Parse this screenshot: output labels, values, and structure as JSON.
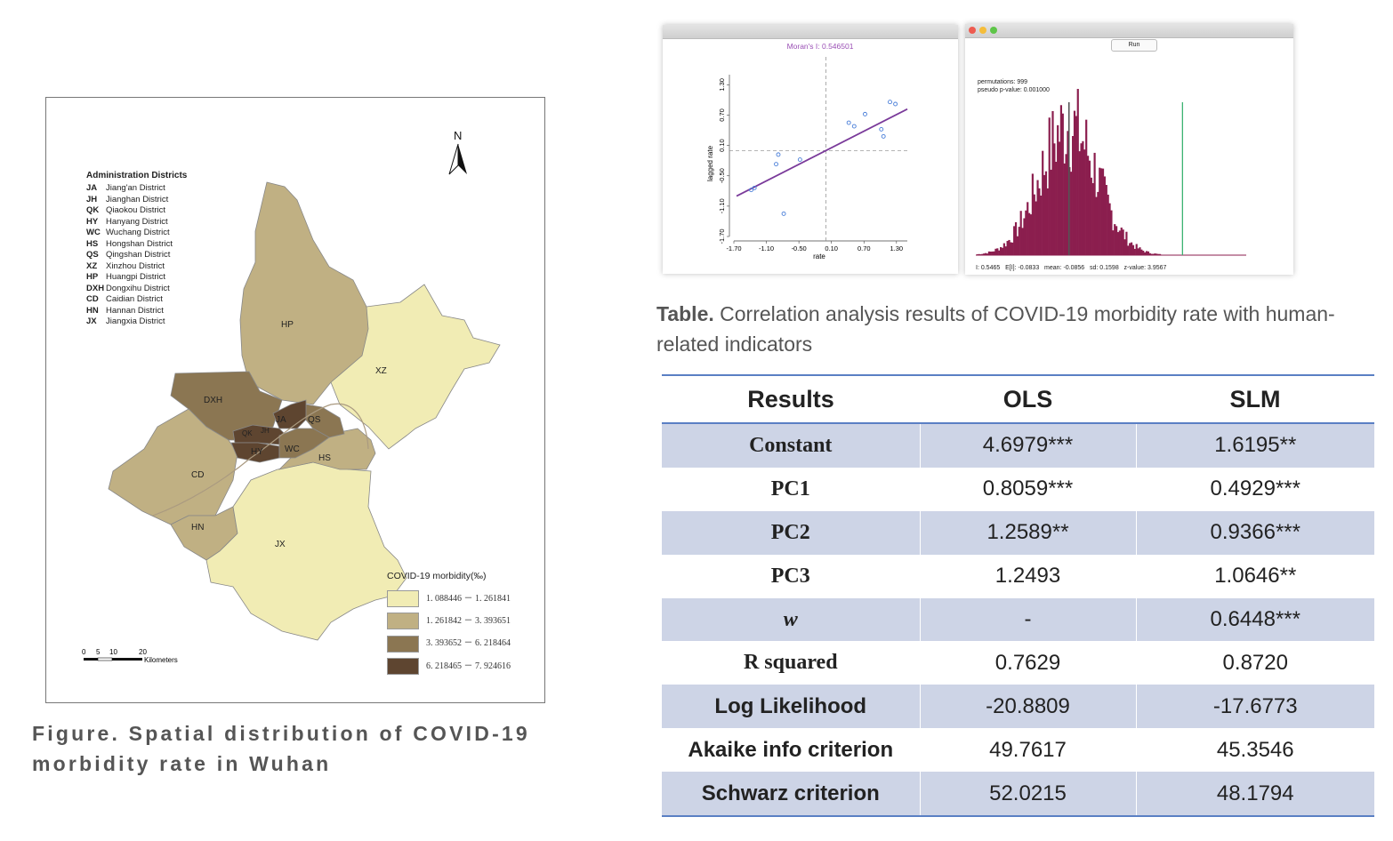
{
  "map": {
    "north_label": "N",
    "districts_title": "Administration Districts",
    "districts": [
      {
        "code": "JA",
        "name": "Jiang'an District"
      },
      {
        "code": "JH",
        "name": "Jianghan District"
      },
      {
        "code": "QK",
        "name": "Qiaokou District"
      },
      {
        "code": "HY",
        "name": "Hanyang District"
      },
      {
        "code": "WC",
        "name": "Wuchang District"
      },
      {
        "code": "HS",
        "name": "Hongshan District"
      },
      {
        "code": "QS",
        "name": "Qingshan District"
      },
      {
        "code": "XZ",
        "name": "Xinzhou District"
      },
      {
        "code": "HP",
        "name": "Huangpi District"
      },
      {
        "code": "DXH",
        "name": "Dongxihu District"
      },
      {
        "code": "CD",
        "name": "Caidian District"
      },
      {
        "code": "HN",
        "name": "Hannan District"
      },
      {
        "code": "JX",
        "name": "Jiangxia District"
      }
    ],
    "region_labels": {
      "HP": "HP",
      "XZ": "XZ",
      "DXH": "DXH",
      "JA": "JA",
      "QS": "QS",
      "QK": "QK",
      "JH": "JH",
      "HY": "HY",
      "WC": "WC",
      "HS": "HS",
      "CD": "CD",
      "HN": "HN",
      "JX": "JX"
    },
    "morbidity_title": "COVID-19 morbidity(‰)",
    "classes": [
      {
        "range": "1. 088446 － 1. 261841",
        "color": "#f1ecb4"
      },
      {
        "range": "1. 261842 － 3. 393651",
        "color": "#c0b083"
      },
      {
        "range": "3. 393652 － 6. 218464",
        "color": "#8b7652"
      },
      {
        "range": "6. 218465 － 7. 924616",
        "color": "#5e4530"
      }
    ],
    "scale": {
      "ticks": [
        "0",
        "5",
        "10",
        "20"
      ],
      "unit": "Kilometers"
    }
  },
  "figure_caption": "Figure. Spatial distribution of COVID-19 morbidity rate in Wuhan",
  "moran_window": {
    "title": "Moran's I: 0.546501",
    "xlabel": "rate",
    "ylabel": "lagged rate"
  },
  "perm_window": {
    "run_label": "Run",
    "permutations": "permutations: 999",
    "pvalue": "pseudo p-value: 0.001000",
    "stats": "I: 0.5465   E[I]: -0.0833   mean: -0.0856   sd: 0.1598   z-value: 3.9567"
  },
  "table_caption": {
    "lead": "Table.",
    "text": " Correlation analysis results of COVID-19 morbidity rate with human-related indicators"
  },
  "table": {
    "headers": [
      "Results",
      "OLS",
      "SLM"
    ],
    "rows": [
      {
        "label": "Constant",
        "ols": "4.6979***",
        "slm": "1.6195**"
      },
      {
        "label": "PC1",
        "ols": "0.8059***",
        "slm": "0.4929***"
      },
      {
        "label": "PC2",
        "ols": "1.2589**",
        "slm": "0.9366***"
      },
      {
        "label": "PC3",
        "ols": "1.2493",
        "slm": "1.0646**"
      },
      {
        "label": "w",
        "ols": "-",
        "slm": "0.6448***"
      },
      {
        "label": "R squared",
        "ols": "0.7629",
        "slm": "0.8720"
      },
      {
        "label": "Log Likelihood",
        "ols": "-20.8809",
        "slm": "-17.6773"
      },
      {
        "label": "Akaike info criterion",
        "ols": "49.7617",
        "slm": "45.3546"
      },
      {
        "label": "Schwarz criterion",
        "ols": "52.0215",
        "slm": "48.1794"
      }
    ]
  },
  "chart_data": [
    {
      "type": "scatter",
      "title": "Moran's I: 0.546501",
      "xlabel": "rate",
      "ylabel": "lagged rate",
      "xlim": [
        -1.7,
        1.5
      ],
      "ylim": [
        -1.7,
        1.5
      ],
      "x_ticks": [
        "-1.70",
        "-1.10",
        "-0.50",
        "0.10",
        "0.70",
        "1.30"
      ],
      "y_ticks": [
        "-1.70",
        "-1.10",
        "-0.50",
        "0.10",
        "0.70",
        "1.30"
      ],
      "points": [
        {
          "x": -1.38,
          "y": -0.78
        },
        {
          "x": -1.32,
          "y": -0.74
        },
        {
          "x": -0.92,
          "y": -0.27
        },
        {
          "x": -0.88,
          "y": -0.08
        },
        {
          "x": -0.78,
          "y": -1.25
        },
        {
          "x": -0.48,
          "y": -0.18
        },
        {
          "x": 0.42,
          "y": 0.55
        },
        {
          "x": 0.52,
          "y": 0.48
        },
        {
          "x": 0.72,
          "y": 0.72
        },
        {
          "x": 1.02,
          "y": 0.42
        },
        {
          "x": 1.06,
          "y": 0.28
        },
        {
          "x": 1.18,
          "y": 0.96
        },
        {
          "x": 1.28,
          "y": 0.92
        }
      ],
      "fit_slope": 0.5465
    },
    {
      "type": "bar",
      "title": "",
      "reference_lines": {
        "expected": -0.0833,
        "observed": 0.5465
      },
      "xlim": [
        -0.6,
        0.9
      ],
      "hist_mean": -0.0856,
      "hist_sd": 0.1598,
      "permutations": 999
    }
  ]
}
